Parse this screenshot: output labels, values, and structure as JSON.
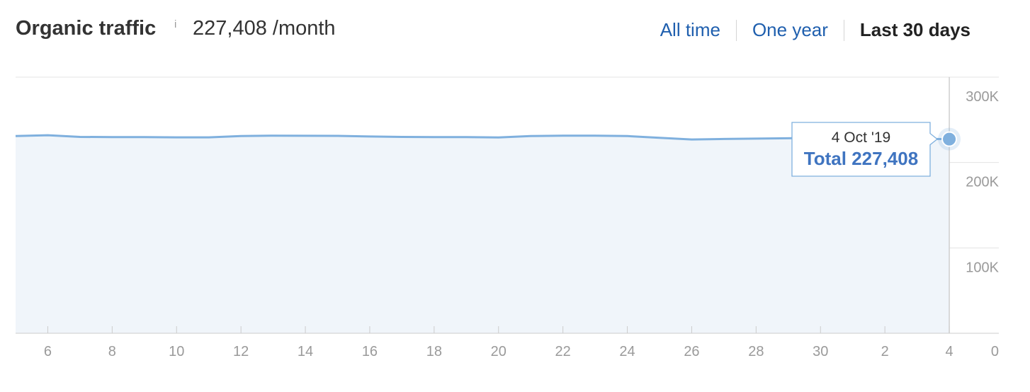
{
  "header": {
    "title": "Organic traffic",
    "info_icon": "i",
    "total_text": "227,408 /month",
    "tabs": [
      {
        "label": "All time",
        "active": false
      },
      {
        "label": "One year",
        "active": false
      },
      {
        "label": "Last 30 days",
        "active": true
      }
    ]
  },
  "colors": {
    "line": "#7fb0de",
    "area": "#f0f5fa",
    "point": "#7fb0de",
    "tooltip_border": "#7fb0de",
    "tooltip_value": "#3f74c0",
    "grid": "#e3e3e3",
    "tick_text": "#9a9a9a",
    "tab_link": "#1f5fae"
  },
  "tooltip": {
    "date": "4 Oct '19",
    "value_text": "Total 227,408"
  },
  "chart_data": {
    "type": "area",
    "title": "",
    "xlabel": "",
    "ylabel": "",
    "ylim": [
      0,
      300000
    ],
    "y_ticks": [
      0,
      100000,
      200000,
      300000
    ],
    "y_tick_labels": [
      "0",
      "100K",
      "200K",
      "300K"
    ],
    "grid": true,
    "legend": "none",
    "x_tick_labels": [
      "6",
      "8",
      "10",
      "12",
      "14",
      "16",
      "18",
      "20",
      "22",
      "24",
      "26",
      "28",
      "30",
      "2",
      "4"
    ],
    "x": [
      "2019-09-05",
      "2019-09-06",
      "2019-09-07",
      "2019-09-08",
      "2019-09-09",
      "2019-09-10",
      "2019-09-11",
      "2019-09-12",
      "2019-09-13",
      "2019-09-14",
      "2019-09-15",
      "2019-09-16",
      "2019-09-17",
      "2019-09-18",
      "2019-09-19",
      "2019-09-20",
      "2019-09-21",
      "2019-09-22",
      "2019-09-23",
      "2019-09-24",
      "2019-09-25",
      "2019-09-26",
      "2019-09-27",
      "2019-09-28",
      "2019-09-29",
      "2019-09-30",
      "2019-10-01",
      "2019-10-02",
      "2019-10-03",
      "2019-10-04"
    ],
    "series": [
      {
        "values": [
          231000,
          232000,
          230000,
          229800,
          229800,
          229500,
          229500,
          231000,
          231500,
          231300,
          231200,
          230500,
          230000,
          229800,
          229700,
          229300,
          231000,
          231500,
          231500,
          231000,
          229000,
          227000,
          227600,
          228000,
          228400,
          229000,
          229000,
          228300,
          227800,
          227408
        ]
      }
    ],
    "highlight": {
      "x": "2019-10-04",
      "y": 227408
    }
  }
}
